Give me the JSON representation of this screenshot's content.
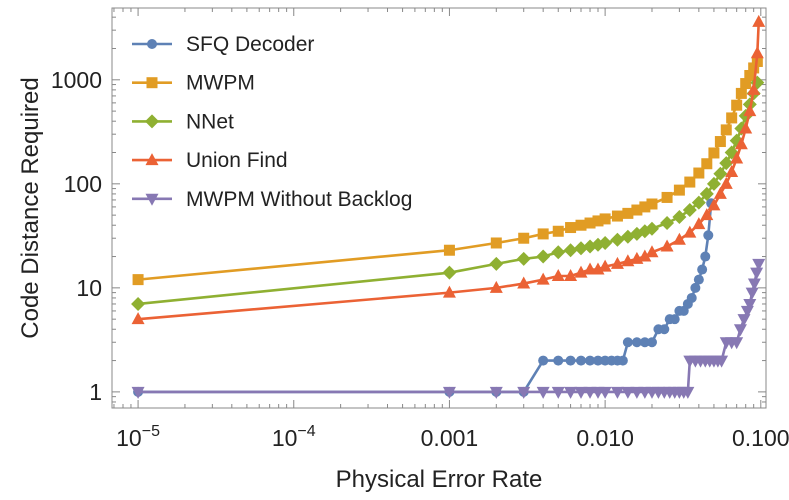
{
  "chart_data": {
    "type": "line",
    "xlabel": "Physical Error Rate",
    "ylabel": "Code Distance Required",
    "xscale": "log",
    "yscale": "log",
    "xlim": [
      6.8e-06,
      0.108
    ],
    "ylim": [
      0.7,
      4900
    ],
    "x_ticks": [
      {
        "value": 1e-05,
        "base": "10",
        "exp": "−5"
      },
      {
        "value": 0.0001,
        "base": "10",
        "exp": "−4"
      },
      {
        "value": 0.001,
        "label": "0.001"
      },
      {
        "value": 0.01,
        "label": "0.010"
      },
      {
        "value": 0.1,
        "label": "0.100"
      }
    ],
    "y_ticks": [
      {
        "value": 1,
        "label": "1"
      },
      {
        "value": 10,
        "label": "10"
      },
      {
        "value": 100,
        "label": "100"
      },
      {
        "value": 1000,
        "label": "1000"
      }
    ],
    "legend_position": "top-left",
    "series": [
      {
        "name": "SFQ Decoder",
        "color": "#5E81B5",
        "marker": "circle",
        "points": [
          [
            1e-05,
            1
          ],
          [
            0.001,
            1
          ],
          [
            0.002,
            1
          ],
          [
            0.003,
            1
          ],
          [
            0.004,
            2
          ],
          [
            0.005,
            2
          ],
          [
            0.006,
            2
          ],
          [
            0.007,
            2
          ],
          [
            0.008,
            2
          ],
          [
            0.009,
            2
          ],
          [
            0.01,
            2
          ],
          [
            0.011,
            2
          ],
          [
            0.012,
            2
          ],
          [
            0.013,
            2
          ],
          [
            0.014,
            3
          ],
          [
            0.016,
            3
          ],
          [
            0.018,
            3
          ],
          [
            0.02,
            3
          ],
          [
            0.022,
            4
          ],
          [
            0.024,
            4
          ],
          [
            0.026,
            5
          ],
          [
            0.028,
            5
          ],
          [
            0.03,
            6
          ],
          [
            0.032,
            6
          ],
          [
            0.034,
            7
          ],
          [
            0.036,
            8
          ],
          [
            0.038,
            10
          ],
          [
            0.04,
            12
          ],
          [
            0.042,
            15
          ],
          [
            0.044,
            20
          ],
          [
            0.046,
            32
          ],
          [
            0.048,
            65
          ]
        ]
      },
      {
        "name": "MWPM",
        "color": "#E19C24",
        "marker": "square",
        "points": [
          [
            1e-05,
            12
          ],
          [
            0.001,
            23
          ],
          [
            0.002,
            27
          ],
          [
            0.003,
            30
          ],
          [
            0.004,
            33
          ],
          [
            0.005,
            35
          ],
          [
            0.006,
            38
          ],
          [
            0.007,
            40
          ],
          [
            0.008,
            42
          ],
          [
            0.009,
            44
          ],
          [
            0.01,
            46
          ],
          [
            0.012,
            49
          ],
          [
            0.014,
            52
          ],
          [
            0.016,
            56
          ],
          [
            0.018,
            60
          ],
          [
            0.02,
            64
          ],
          [
            0.025,
            74
          ],
          [
            0.03,
            87
          ],
          [
            0.035,
            104
          ],
          [
            0.04,
            127
          ],
          [
            0.045,
            156
          ],
          [
            0.05,
            198
          ],
          [
            0.055,
            255
          ],
          [
            0.06,
            330
          ],
          [
            0.065,
            430
          ],
          [
            0.07,
            570
          ],
          [
            0.075,
            740
          ],
          [
            0.08,
            920
          ],
          [
            0.085,
            1100
          ],
          [
            0.09,
            1300
          ],
          [
            0.095,
            1500
          ]
        ]
      },
      {
        "name": "NNet",
        "color": "#8FB032",
        "marker": "diamond",
        "points": [
          [
            1e-05,
            7
          ],
          [
            0.001,
            14
          ],
          [
            0.002,
            17
          ],
          [
            0.003,
            19
          ],
          [
            0.004,
            20
          ],
          [
            0.005,
            22
          ],
          [
            0.006,
            23
          ],
          [
            0.007,
            24
          ],
          [
            0.008,
            25
          ],
          [
            0.009,
            26
          ],
          [
            0.01,
            27
          ],
          [
            0.012,
            29
          ],
          [
            0.014,
            31
          ],
          [
            0.016,
            33
          ],
          [
            0.018,
            35
          ],
          [
            0.02,
            37
          ],
          [
            0.025,
            42
          ],
          [
            0.03,
            48
          ],
          [
            0.035,
            56
          ],
          [
            0.04,
            66
          ],
          [
            0.045,
            80
          ],
          [
            0.05,
            100
          ],
          [
            0.055,
            125
          ],
          [
            0.06,
            158
          ],
          [
            0.065,
            200
          ],
          [
            0.07,
            260
          ],
          [
            0.075,
            340
          ],
          [
            0.08,
            450
          ],
          [
            0.085,
            580
          ],
          [
            0.09,
            740
          ],
          [
            0.095,
            940
          ]
        ]
      },
      {
        "name": "Union Find",
        "color": "#EB6235",
        "marker": "triangle-up",
        "points": [
          [
            1e-05,
            5
          ],
          [
            0.001,
            9
          ],
          [
            0.002,
            10
          ],
          [
            0.003,
            11
          ],
          [
            0.004,
            12
          ],
          [
            0.005,
            13
          ],
          [
            0.006,
            13
          ],
          [
            0.007,
            14
          ],
          [
            0.008,
            15
          ],
          [
            0.009,
            15
          ],
          [
            0.01,
            16
          ],
          [
            0.012,
            17
          ],
          [
            0.014,
            18
          ],
          [
            0.016,
            19
          ],
          [
            0.018,
            20
          ],
          [
            0.02,
            22
          ],
          [
            0.025,
            25
          ],
          [
            0.03,
            29
          ],
          [
            0.035,
            34
          ],
          [
            0.04,
            41
          ],
          [
            0.045,
            50
          ],
          [
            0.05,
            62
          ],
          [
            0.055,
            80
          ],
          [
            0.06,
            100
          ],
          [
            0.065,
            130
          ],
          [
            0.07,
            175
          ],
          [
            0.075,
            240
          ],
          [
            0.08,
            340
          ],
          [
            0.085,
            500
          ],
          [
            0.09,
            800
          ],
          [
            0.095,
            1800
          ],
          [
            0.097,
            3600
          ]
        ]
      },
      {
        "name": "MWPM Without Backlog",
        "color": "#8778B3",
        "marker": "triangle-down",
        "points": [
          [
            1e-05,
            1
          ],
          [
            0.001,
            1
          ],
          [
            0.002,
            1
          ],
          [
            0.003,
            1
          ],
          [
            0.004,
            1
          ],
          [
            0.005,
            1
          ],
          [
            0.006,
            1
          ],
          [
            0.007,
            1
          ],
          [
            0.008,
            1
          ],
          [
            0.009,
            1
          ],
          [
            0.01,
            1
          ],
          [
            0.012,
            1
          ],
          [
            0.014,
            1
          ],
          [
            0.016,
            1
          ],
          [
            0.018,
            1
          ],
          [
            0.02,
            1
          ],
          [
            0.022,
            1
          ],
          [
            0.024,
            1
          ],
          [
            0.026,
            1
          ],
          [
            0.028,
            1
          ],
          [
            0.03,
            1
          ],
          [
            0.032,
            1
          ],
          [
            0.034,
            1
          ],
          [
            0.035,
            2
          ],
          [
            0.038,
            2
          ],
          [
            0.041,
            2
          ],
          [
            0.044,
            2
          ],
          [
            0.047,
            2
          ],
          [
            0.05,
            2
          ],
          [
            0.053,
            2
          ],
          [
            0.056,
            2
          ],
          [
            0.06,
            3
          ],
          [
            0.065,
            3
          ],
          [
            0.07,
            3
          ],
          [
            0.074,
            4
          ],
          [
            0.078,
            5
          ],
          [
            0.082,
            6
          ],
          [
            0.085,
            7
          ],
          [
            0.088,
            9
          ],
          [
            0.091,
            11
          ],
          [
            0.094,
            14
          ],
          [
            0.097,
            17
          ]
        ]
      }
    ]
  }
}
